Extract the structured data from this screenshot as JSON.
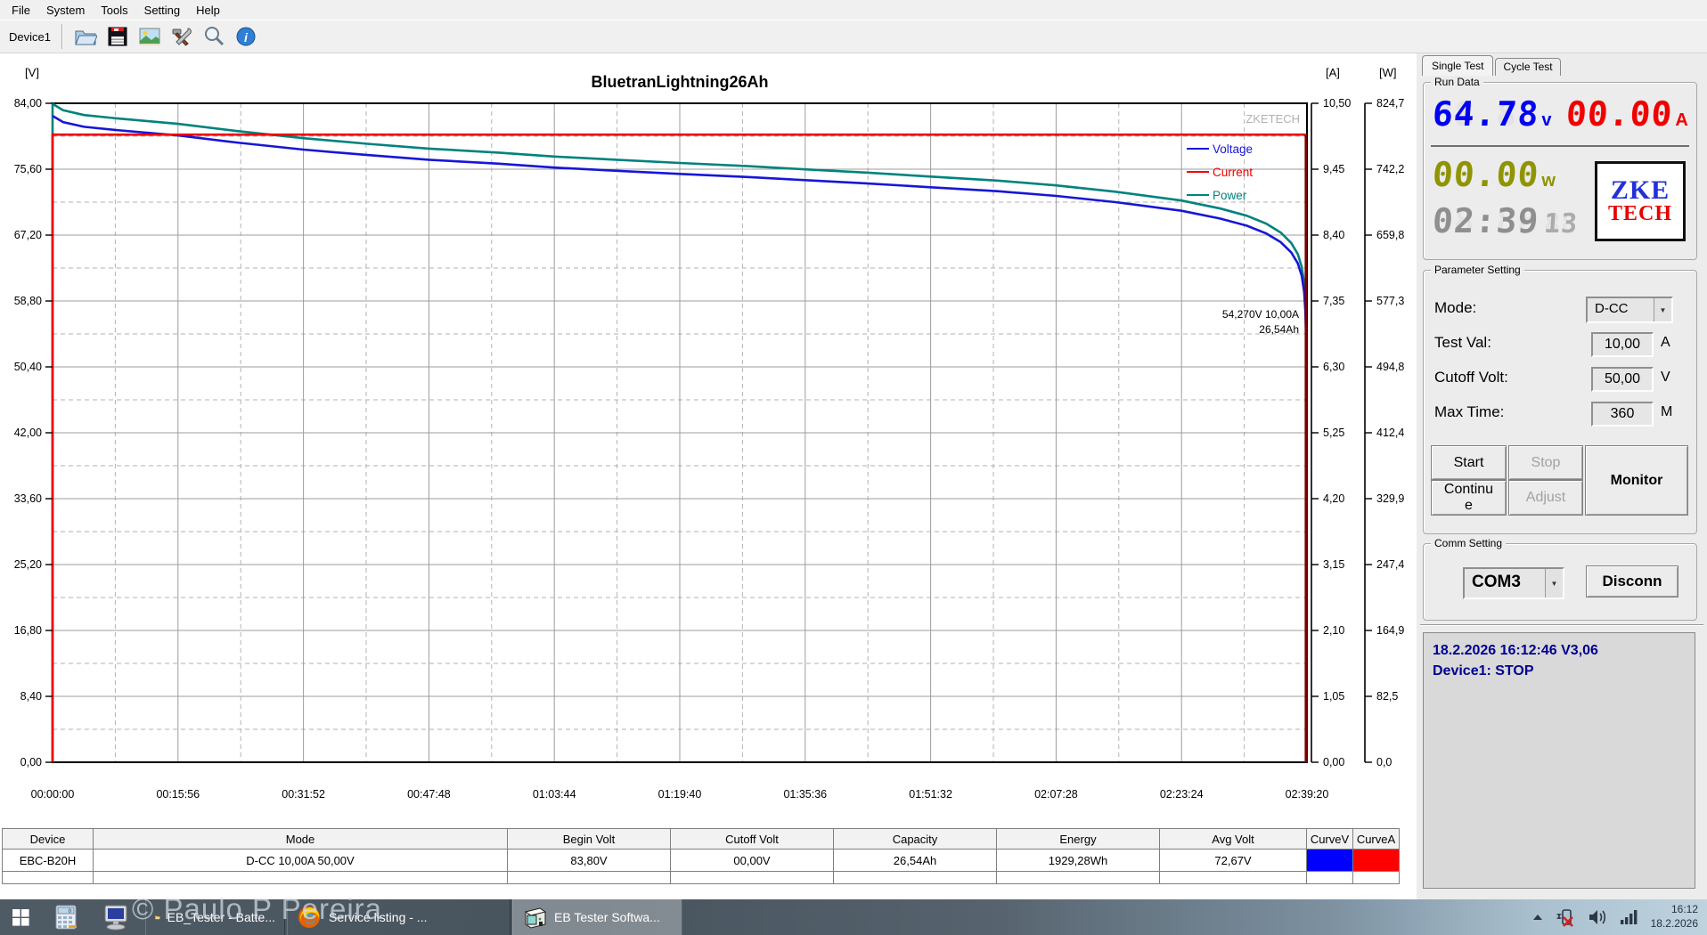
{
  "menubar": {
    "items": [
      "File",
      "System",
      "Tools",
      "Setting",
      "Help"
    ]
  },
  "toolbar": {
    "device_label": "Device1"
  },
  "chart_data": {
    "type": "line",
    "title": "BluetranLightning26Ah",
    "watermark": "ZKETECH",
    "x_range": [
      0,
      9560
    ],
    "x_tick_labels": [
      "00:00:00",
      "00:15:56",
      "00:31:52",
      "00:47:48",
      "01:03:44",
      "01:19:40",
      "01:35:36",
      "01:51:32",
      "02:07:28",
      "02:23:24",
      "02:39:20"
    ],
    "axes": [
      {
        "id": "voltage",
        "unit": "[V]",
        "side": "left",
        "range": [
          0,
          84
        ],
        "tick_labels": [
          "84,00",
          "75,60",
          "67,20",
          "58,80",
          "50,40",
          "42,00",
          "33,60",
          "25,20",
          "16,80",
          "8,40",
          "0,00"
        ]
      },
      {
        "id": "current",
        "unit": "[A]",
        "side": "right",
        "range": [
          0,
          10.5
        ],
        "tick_labels": [
          "10,50",
          "9,45",
          "8,40",
          "7,35",
          "6,30",
          "5,25",
          "4,20",
          "3,15",
          "2,10",
          "1,05",
          "0,00"
        ]
      },
      {
        "id": "power",
        "unit": "[W]",
        "side": "right",
        "range": [
          0,
          824.7
        ],
        "tick_labels": [
          "824,7",
          "742,2",
          "659,8",
          "577,3",
          "494,8",
          "412,4",
          "329,9",
          "247,4",
          "164,9",
          "82,5",
          "0,0"
        ]
      }
    ],
    "legend": [
      {
        "label": "Voltage",
        "color": "#1616d8"
      },
      {
        "label": "Current",
        "color": "#ee0000"
      },
      {
        "label": "Power",
        "color": "#00827e"
      }
    ],
    "annotation": {
      "lines": [
        "54,270V  10,00A",
        "26,54Ah"
      ]
    },
    "series": [
      {
        "name": "Power",
        "axis": "power",
        "color": "#00827e",
        "width": 2.6,
        "points": [
          [
            0,
            0
          ],
          [
            0,
            824
          ],
          [
            80,
            816
          ],
          [
            240,
            810
          ],
          [
            480,
            806
          ],
          [
            956,
            799
          ],
          [
            1400,
            790
          ],
          [
            1912,
            781
          ],
          [
            2400,
            774
          ],
          [
            2868,
            768
          ],
          [
            3400,
            763
          ],
          [
            3824,
            758
          ],
          [
            4300,
            754
          ],
          [
            4780,
            750
          ],
          [
            5300,
            746
          ],
          [
            5736,
            742
          ],
          [
            6200,
            738
          ],
          [
            6692,
            733
          ],
          [
            7200,
            728
          ],
          [
            7648,
            722
          ],
          [
            8100,
            714
          ],
          [
            8604,
            703
          ],
          [
            8900,
            693
          ],
          [
            9100,
            684
          ],
          [
            9250,
            674
          ],
          [
            9360,
            663
          ],
          [
            9440,
            650
          ],
          [
            9490,
            636
          ],
          [
            9520,
            620
          ],
          [
            9538,
            600
          ],
          [
            9548,
            575
          ],
          [
            9553,
            542.7
          ],
          [
            9553,
            0
          ]
        ]
      },
      {
        "name": "Voltage",
        "axis": "voltage",
        "color": "#1616d8",
        "width": 2.6,
        "points": [
          [
            0,
            82.4
          ],
          [
            80,
            81.6
          ],
          [
            240,
            81.0
          ],
          [
            480,
            80.6
          ],
          [
            956,
            79.9
          ],
          [
            1400,
            79.0
          ],
          [
            1912,
            78.1
          ],
          [
            2400,
            77.4
          ],
          [
            2868,
            76.8
          ],
          [
            3400,
            76.3
          ],
          [
            3824,
            75.8
          ],
          [
            4300,
            75.4
          ],
          [
            4780,
            75.0
          ],
          [
            5300,
            74.6
          ],
          [
            5736,
            74.2
          ],
          [
            6200,
            73.8
          ],
          [
            6692,
            73.3
          ],
          [
            7200,
            72.8
          ],
          [
            7648,
            72.2
          ],
          [
            8100,
            71.4
          ],
          [
            8604,
            70.3
          ],
          [
            8900,
            69.3
          ],
          [
            9100,
            68.4
          ],
          [
            9250,
            67.4
          ],
          [
            9360,
            66.3
          ],
          [
            9440,
            65.0
          ],
          [
            9490,
            63.6
          ],
          [
            9520,
            62.0
          ],
          [
            9538,
            60.0
          ],
          [
            9548,
            57.5
          ],
          [
            9553,
            54.27
          ]
        ]
      },
      {
        "name": "Current",
        "axis": "current",
        "color": "#ee0000",
        "width": 2.6,
        "points": [
          [
            0,
            0
          ],
          [
            0,
            10.0
          ],
          [
            9551,
            10.0
          ]
        ]
      },
      {
        "name": "Current-end-drop",
        "axis": "current",
        "color": "#7a0000",
        "width": 2.6,
        "points": [
          [
            9551,
            10.0
          ],
          [
            9551,
            0
          ]
        ]
      }
    ]
  },
  "table": {
    "headers": [
      "Device",
      "Mode",
      "Begin Volt",
      "Cutoff Volt",
      "Capacity",
      "Energy",
      "Avg Volt",
      "CurveV",
      "CurveA"
    ],
    "row": [
      "EBC-B20H",
      "D-CC 10,00A 50,00V",
      "83,80V",
      "00,00V",
      "26,54Ah",
      "1929,28Wh",
      "72,67V"
    ],
    "curve_v_color": "#0000ff",
    "curve_a_color": "#ff0000"
  },
  "panel": {
    "tabs": [
      "Single Test",
      "Cycle Test"
    ],
    "run_data": {
      "legend": "Run Data",
      "voltage": "64.78",
      "voltage_unit": "v",
      "current": "00.00",
      "current_unit": "A",
      "power": "00.00",
      "power_unit": "w",
      "time_main": "02:39",
      "time_seconds": "13",
      "logo_top": "ZKE",
      "logo_bottom": "TECH"
    },
    "parameter": {
      "legend": "Parameter Setting",
      "mode_label": "Mode:",
      "mode_value": "D-CC",
      "testval_label": "Test Val:",
      "testval_value": "10,00",
      "testval_unit": "A",
      "cutoff_label": "Cutoff Volt:",
      "cutoff_value": "50,00",
      "cutoff_unit": "V",
      "maxtime_label": "Max Time:",
      "maxtime_value": "360",
      "maxtime_unit": "M",
      "start": "Start",
      "stop": "Stop",
      "continue": "Continue",
      "adjust": "Adjust",
      "monitor": "Monitor"
    },
    "comm": {
      "legend": "Comm Setting",
      "port": "COM3",
      "disconnect": "Disconn"
    },
    "log": {
      "line1": "18.2.2026 16:12:46  V3,06",
      "line2": "Device1: STOP"
    }
  },
  "taskbar": {
    "tasks": [
      {
        "label": "EB_Tester - Batte..."
      },
      {
        "label": "Service listing - ..."
      },
      {
        "label": "EB Tester Softwa..."
      }
    ],
    "time": "16:12",
    "date": "18.2.2026",
    "copyright": "© Paulo P Pereira"
  }
}
